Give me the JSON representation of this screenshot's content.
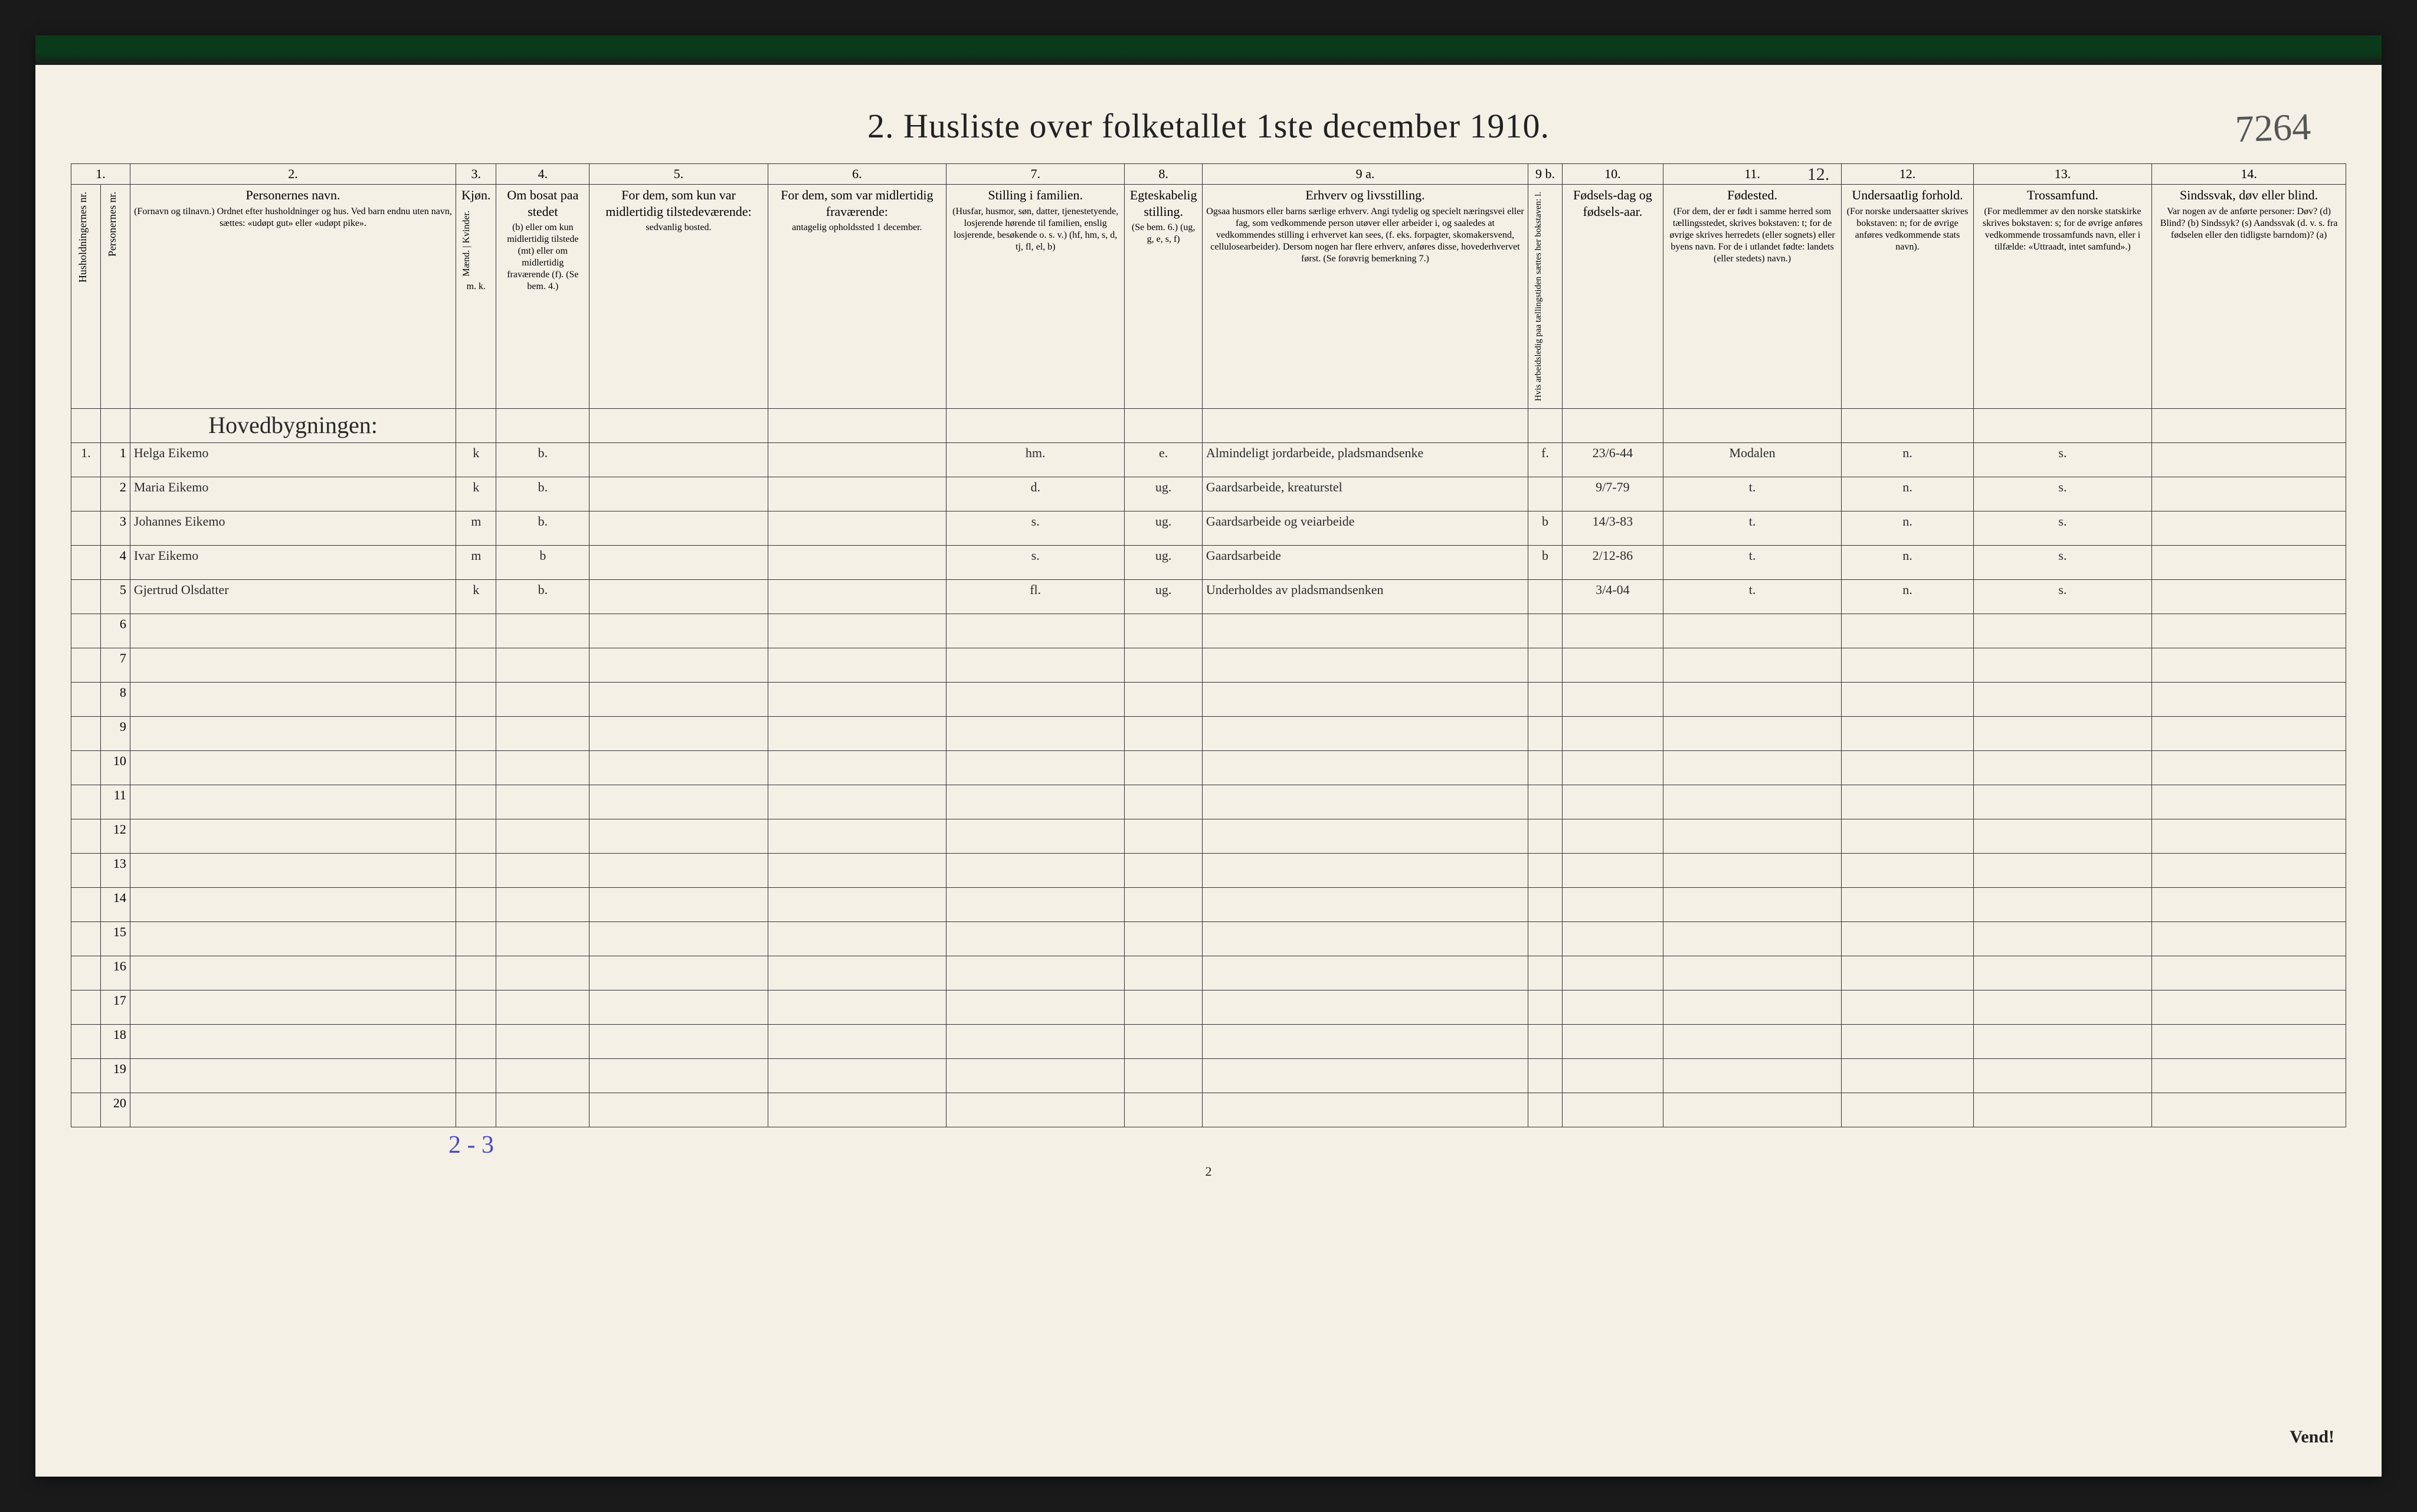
{
  "title": "2.  Husliste over folketallet 1ste december 1910.",
  "handwritten_id": "7264",
  "page_number_bottom": "2",
  "vend_text": "Vend!",
  "bottom_annotation": "2 - 3",
  "columns": {
    "nums": [
      "1.",
      "",
      "2.",
      "3.",
      "4.",
      "5.",
      "6.",
      "7.",
      "8.",
      "9 a.",
      "9 b.",
      "10.",
      "11.",
      "12.",
      "13.",
      "14."
    ],
    "h1": "Husholdningernes nr.",
    "h1b": "Personernes nr.",
    "h2_main": "Personernes navn.",
    "h2_sub": "(Fornavn og tilnavn.)\nOrdnet efter husholdninger og hus.\nVed barn endnu uten navn, sættes: «udøpt gut» eller «udøpt pike».",
    "h3_main": "Kjøn.",
    "h3_sub": "Mænd. | Kvinder.",
    "h3_mk": "m. k.",
    "h4_main": "Om bosat paa stedet",
    "h4_sub": "(b) eller om kun midlertidig tilstede (mt) eller om midlertidig fraværende (f).\n(Se bem. 4.)",
    "h5_main": "For dem, som kun var midlertidig tilstedeværende:",
    "h5_sub": "sedvanlig bosted.",
    "h6_main": "For dem, som var midlertidig fraværende:",
    "h6_sub": "antagelig opholdssted 1 december.",
    "h7_main": "Stilling i familien.",
    "h7_sub": "(Husfar, husmor, søn, datter, tjenestetyende, losjerende hørende til familien, enslig losjerende, besøkende o. s. v.)\n(hf, hm, s, d, tj, fl, el, b)",
    "h8_main": "Egteskabelig stilling.",
    "h8_sub": "(Se bem. 6.)\n(ug, g, e, s, f)",
    "h9a_main": "Erhverv og livsstilling.",
    "h9a_sub": "Ogsaa husmors eller barns særlige erhverv. Angi tydelig og specielt næringsvei eller fag, som vedkommende person utøver eller arbeider i, og saaledes at vedkommendes stilling i erhvervet kan sees, (f. eks. forpagter, skomakersvend, cellulosearbeider). Dersom nogen har flere erhverv, anføres disse, hovederhvervet først.\n(Se forøvrig bemerkning 7.)",
    "h9b": "Hvis arbeidsledig paa tællingstiden sættes her bokstaven: l.",
    "h10_main": "Fødsels-dag og fødsels-aar.",
    "h11_main": "Fødested.",
    "h11_sub": "(For dem, der er født i samme herred som tællingsstedet, skrives bokstaven: t; for de øvrige skrives herredets (eller sognets) eller byens navn. For de i utlandet fødte: landets (eller stedets) navn.)",
    "h11_above": "12.",
    "h12_main": "Undersaatlig forhold.",
    "h12_sub": "(For norske undersaatter skrives bokstaven: n; for de øvrige anføres vedkommende stats navn).",
    "h13_main": "Trossamfund.",
    "h13_sub": "(For medlemmer av den norske statskirke skrives bokstaven: s; for de øvrige anføres vedkommende trossamfunds navn, eller i tilfælde: «Uttraadt, intet samfund».)",
    "h14_main": "Sindssvak, døv eller blind.",
    "h14_sub": "Var nogen av de anførte personer:\nDøv? (d)\nBlind? (b)\nSindssyk? (s)\nAandssvak (d. v. s. fra fødselen eller den tidligste barndom)? (a)"
  },
  "building_row": "Hovedbygningen:",
  "rows": [
    {
      "hh": "1.",
      "pn": "1",
      "name": "Helga Eikemo",
      "sex": "k",
      "res": "b.",
      "c5": "",
      "c6": "",
      "fam": "hm.",
      "mar": "e.",
      "occ": "Almindeligt jordarbeide, pladsmandsenke",
      "l": "f.",
      "dob": "23/6-44",
      "birthpl": "Modalen",
      "nat": "n.",
      "rel": "s.",
      "c14": ""
    },
    {
      "hh": "",
      "pn": "2",
      "name": "Maria Eikemo",
      "sex": "k",
      "res": "b.",
      "c5": "",
      "c6": "",
      "fam": "d.",
      "mar": "ug.",
      "occ": "Gaardsarbeide, kreaturstel",
      "l": "",
      "dob": "9/7-79",
      "birthpl": "t.",
      "nat": "n.",
      "rel": "s.",
      "c14": ""
    },
    {
      "hh": "",
      "pn": "3",
      "name": "Johannes Eikemo",
      "sex": "m",
      "res": "b.",
      "c5": "",
      "c6": "",
      "fam": "s.",
      "mar": "ug.",
      "occ": "Gaardsarbeide og veiarbeide",
      "l": "b",
      "dob": "14/3-83",
      "birthpl": "t.",
      "nat": "n.",
      "rel": "s.",
      "c14": ""
    },
    {
      "hh": "",
      "pn": "4",
      "name": "Ivar Eikemo",
      "sex": "m",
      "res": "b",
      "c5": "",
      "c6": "",
      "fam": "s.",
      "mar": "ug.",
      "occ": "Gaardsarbeide",
      "l": "b",
      "dob": "2/12-86",
      "birthpl": "t.",
      "nat": "n.",
      "rel": "s.",
      "c14": ""
    },
    {
      "hh": "",
      "pn": "5",
      "name": "Gjertrud Olsdatter",
      "sex": "k",
      "res": "b.",
      "c5": "",
      "c6": "",
      "fam": "fl.",
      "mar": "ug.",
      "occ": "Underholdes av pladsmandsenken",
      "l": "",
      "dob": "3/4-04",
      "birthpl": "t.",
      "nat": "n.",
      "rel": "s.",
      "c14": ""
    }
  ],
  "empty_rows": [
    "6",
    "7",
    "8",
    "9",
    "10",
    "11",
    "12",
    "13",
    "14",
    "15",
    "16",
    "17",
    "18",
    "19",
    "20"
  ],
  "col_widths": {
    "c1": "38",
    "c1b": "38",
    "c2": "420",
    "c3": "52",
    "c4": "120",
    "c5": "230",
    "c6": "230",
    "c7": "230",
    "c8": "100",
    "c9a": "420",
    "c9b": "44",
    "c10": "130",
    "c11": "230",
    "c12": "170",
    "c13": "230",
    "c14": "250"
  },
  "colors": {
    "paper": "#f4f0e6",
    "ink": "#222",
    "hand": "#2a2a2a",
    "blue": "#4a4ac0"
  }
}
